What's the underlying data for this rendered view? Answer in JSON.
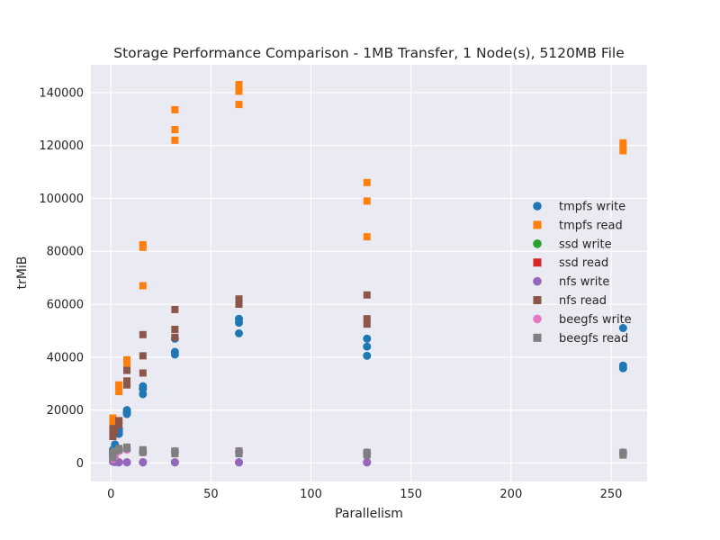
{
  "chart_data": {
    "type": "scatter",
    "title": "Storage Performance Comparison - 1MB Transfer, 1 Node(s), 5120MB File",
    "xlabel": "Parallelism",
    "ylabel": "trMiB",
    "xlim": [
      -10,
      268
    ],
    "ylim": [
      -7000,
      150500
    ],
    "xticks": [
      0,
      50,
      100,
      150,
      200,
      250
    ],
    "yticks": [
      0,
      20000,
      40000,
      60000,
      80000,
      100000,
      120000,
      140000
    ],
    "grid": true,
    "legend_position": "center-right",
    "series": [
      {
        "name": "tmpfs write",
        "marker": "circle",
        "color": "#1f77b4",
        "points": [
          [
            1,
            3000
          ],
          [
            1,
            4000
          ],
          [
            1,
            5000
          ],
          [
            2,
            6000
          ],
          [
            2,
            7000
          ],
          [
            2,
            5000
          ],
          [
            4,
            11000
          ],
          [
            4,
            12000
          ],
          [
            4,
            13000
          ],
          [
            8,
            18500
          ],
          [
            8,
            19000
          ],
          [
            8,
            20000
          ],
          [
            16,
            26000
          ],
          [
            16,
            28000
          ],
          [
            16,
            29000
          ],
          [
            32,
            41000
          ],
          [
            32,
            42000
          ],
          [
            32,
            47000
          ],
          [
            64,
            49000
          ],
          [
            64,
            53000
          ],
          [
            64,
            54500
          ],
          [
            128,
            40500
          ],
          [
            128,
            44000
          ],
          [
            128,
            47000
          ],
          [
            256,
            35800
          ],
          [
            256,
            36800
          ],
          [
            256,
            51000
          ]
        ]
      },
      {
        "name": "tmpfs read",
        "marker": "square",
        "color": "#ff7f0e",
        "points": [
          [
            1,
            14000
          ],
          [
            1,
            16000
          ],
          [
            1,
            17000
          ],
          [
            4,
            27000
          ],
          [
            4,
            29000
          ],
          [
            4,
            29500
          ],
          [
            8,
            36000
          ],
          [
            8,
            38000
          ],
          [
            8,
            39000
          ],
          [
            16,
            67000
          ],
          [
            16,
            81500
          ],
          [
            16,
            82500
          ],
          [
            32,
            122000
          ],
          [
            32,
            126000
          ],
          [
            32,
            133500
          ],
          [
            64,
            135500
          ],
          [
            64,
            140500
          ],
          [
            64,
            143000
          ],
          [
            128,
            85500
          ],
          [
            128,
            99000
          ],
          [
            128,
            106000
          ],
          [
            256,
            118000
          ],
          [
            256,
            119500
          ],
          [
            256,
            121000
          ]
        ]
      },
      {
        "name": "ssd write",
        "marker": "circle",
        "color": "#2ca02c",
        "points": []
      },
      {
        "name": "ssd read",
        "marker": "square",
        "color": "#d62728",
        "points": []
      },
      {
        "name": "nfs write",
        "marker": "circle",
        "color": "#9467bd",
        "points": [
          [
            1,
            500
          ],
          [
            1,
            600
          ],
          [
            2,
            300
          ],
          [
            4,
            200
          ],
          [
            4,
            300
          ],
          [
            8,
            200
          ],
          [
            8,
            300
          ],
          [
            16,
            200
          ],
          [
            16,
            300
          ],
          [
            32,
            200
          ],
          [
            32,
            300
          ],
          [
            64,
            200
          ],
          [
            64,
            300
          ],
          [
            128,
            200
          ],
          [
            128,
            300
          ]
        ]
      },
      {
        "name": "nfs read",
        "marker": "square",
        "color": "#8c564b",
        "points": [
          [
            1,
            10000
          ],
          [
            1,
            11000
          ],
          [
            1,
            13000
          ],
          [
            2,
            12000
          ],
          [
            4,
            14500
          ],
          [
            4,
            15500
          ],
          [
            4,
            16000
          ],
          [
            8,
            29500
          ],
          [
            8,
            31000
          ],
          [
            8,
            35000
          ],
          [
            16,
            34000
          ],
          [
            16,
            40500
          ],
          [
            16,
            48500
          ],
          [
            32,
            47500
          ],
          [
            32,
            50500
          ],
          [
            32,
            58000
          ],
          [
            64,
            60000
          ],
          [
            64,
            61000
          ],
          [
            64,
            62000
          ],
          [
            128,
            52500
          ],
          [
            128,
            54500
          ],
          [
            128,
            63500
          ]
        ]
      },
      {
        "name": "beegfs write",
        "marker": "circle",
        "color": "#e377c2",
        "points": [
          [
            1,
            1500
          ],
          [
            1,
            2000
          ],
          [
            2,
            2500
          ],
          [
            4,
            4500
          ],
          [
            4,
            5000
          ],
          [
            8,
            5000
          ],
          [
            8,
            5500
          ],
          [
            16,
            4000
          ],
          [
            16,
            4500
          ],
          [
            32,
            4000
          ],
          [
            32,
            4500
          ],
          [
            64,
            4000
          ],
          [
            64,
            4500
          ],
          [
            128,
            3500
          ],
          [
            128,
            4000
          ],
          [
            256,
            3500
          ],
          [
            256,
            4000
          ]
        ]
      },
      {
        "name": "beegfs read",
        "marker": "square",
        "color": "#7f7f7f",
        "points": [
          [
            1,
            2000
          ],
          [
            1,
            3000
          ],
          [
            1,
            4000
          ],
          [
            2,
            4500
          ],
          [
            4,
            5000
          ],
          [
            4,
            5500
          ],
          [
            8,
            5500
          ],
          [
            8,
            6000
          ],
          [
            16,
            4000
          ],
          [
            16,
            4500
          ],
          [
            16,
            5000
          ],
          [
            32,
            3500
          ],
          [
            32,
            4000
          ],
          [
            32,
            4500
          ],
          [
            64,
            3500
          ],
          [
            64,
            4000
          ],
          [
            64,
            4500
          ],
          [
            128,
            3000
          ],
          [
            128,
            3500
          ],
          [
            128,
            4000
          ],
          [
            256,
            3000
          ],
          [
            256,
            3500
          ],
          [
            256,
            4000
          ]
        ]
      }
    ]
  }
}
